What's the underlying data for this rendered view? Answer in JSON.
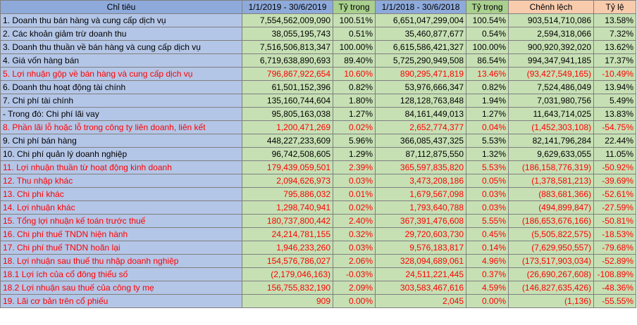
{
  "headers": {
    "label": "Chỉ tiêu",
    "period_2019": "1/1/2019 - 30/6/2019",
    "weight_2019": "Tỷ trọng",
    "period_2018": "1/1/2018 - 30/6/2018",
    "weight_2018": "Tỷ trọng",
    "difference": "Chênh lệch",
    "ratio": "Tỷ lệ"
  },
  "colors": {
    "header_blue": "#8eaadb",
    "header_green": "#a9d08e",
    "header_orange": "#f8cbad",
    "label_bg": "#b4c6e7",
    "cell_bg": "#c6e0b4",
    "highlight_text": "#ff0000"
  },
  "rows": [
    {
      "label": "1. Doanh thu bán hàng và cung cấp dịch vụ",
      "v2019": "7,554,562,009,090",
      "w2019": "100.51%",
      "v2018": "6,651,047,299,004",
      "w2018": "100.54%",
      "diff": "903,514,710,086",
      "ratio": "13.58%",
      "highlight": false
    },
    {
      "label": "2. Các khoản giảm trừ doanh thu",
      "v2019": "38,055,195,743",
      "w2019": "0.51%",
      "v2018": "35,460,877,677",
      "w2018": "0.54%",
      "diff": "2,594,318,066",
      "ratio": "7.32%",
      "highlight": false
    },
    {
      "label": "3. Doanh thu thuần về bán hàng và cung cấp dịch vụ",
      "v2019": "7,516,506,813,347",
      "w2019": "100.00%",
      "v2018": "6,615,586,421,327",
      "w2018": "100.00%",
      "diff": "900,920,392,020",
      "ratio": "13.62%",
      "highlight": false
    },
    {
      "label": "4. Giá vốn hàng bán",
      "v2019": "6,719,638,890,693",
      "w2019": "89.40%",
      "v2018": "5,725,290,949,508",
      "w2018": "86.54%",
      "diff": "994,347,941,185",
      "ratio": "17.37%",
      "highlight": false
    },
    {
      "label": "5. Lợi nhuận gộp về bán hàng và cung cấp dịch vụ",
      "v2019": "796,867,922,654",
      "w2019": "10.60%",
      "v2018": "890,295,471,819",
      "w2018": "13.46%",
      "diff": "(93,427,549,165)",
      "ratio": "-10.49%",
      "highlight": true
    },
    {
      "label": "6. Doanh thu hoạt động tài chính",
      "v2019": "61,501,152,396",
      "w2019": "0.82%",
      "v2018": "53,976,666,347",
      "w2018": "0.82%",
      "diff": "7,524,486,049",
      "ratio": "13.94%",
      "highlight": false
    },
    {
      "label": "7. Chi phí tài chính",
      "v2019": "135,160,744,604",
      "w2019": "1.80%",
      "v2018": "128,128,763,848",
      "w2018": "1.94%",
      "diff": "7,031,980,756",
      "ratio": "5.49%",
      "highlight": false
    },
    {
      "label": " - Trong đó: Chi phí lãi vay",
      "v2019": "95,805,163,038",
      "w2019": "1.27%",
      "v2018": "84,161,449,013",
      "w2018": "1.27%",
      "diff": "11,643,714,025",
      "ratio": "13.83%",
      "highlight": false
    },
    {
      "label": "8. Phần lãi lỗ hoặc lỗ trong công ty liên doanh, liên kết",
      "v2019": "1,200,471,269",
      "w2019": "0.02%",
      "v2018": "2,652,774,377",
      "w2018": "0.04%",
      "diff": "(1,452,303,108)",
      "ratio": "-54.75%",
      "highlight": true
    },
    {
      "label": "9. Chi phí bán hàng",
      "v2019": "448,227,233,609",
      "w2019": "5.96%",
      "v2018": "366,085,437,325",
      "w2018": "5.53%",
      "diff": "82,141,796,284",
      "ratio": "22.44%",
      "highlight": false
    },
    {
      "label": "10. Chi phí quản lý doanh nghiệp",
      "v2019": "96,742,508,605",
      "w2019": "1.29%",
      "v2018": "87,112,875,550",
      "w2018": "1.32%",
      "diff": "9,629,633,055",
      "ratio": "11.05%",
      "highlight": false
    },
    {
      "label": "11. Lợi nhuận thuần từ hoạt động kinh doanh",
      "v2019": "179,439,059,501",
      "w2019": "2.39%",
      "v2018": "365,597,835,820",
      "w2018": "5.53%",
      "diff": "(186,158,776,319)",
      "ratio": "-50.92%",
      "highlight": true
    },
    {
      "label": "12. Thu nhập khác",
      "v2019": "2,094,626,973",
      "w2019": "0.03%",
      "v2018": "3,473,208,186",
      "w2018": "0.05%",
      "diff": "(1,378,581,213)",
      "ratio": "-39.69%",
      "highlight": true
    },
    {
      "label": "13. Chi phí khác",
      "v2019": "795,886,032",
      "w2019": "0.01%",
      "v2018": "1,679,567,098",
      "w2018": "0.03%",
      "diff": "(883,681,366)",
      "ratio": "-52.61%",
      "highlight": true
    },
    {
      "label": "14. Lợi nhuận khác",
      "v2019": "1,298,740,941",
      "w2019": "0.02%",
      "v2018": "1,793,640,788",
      "w2018": "0.03%",
      "diff": "(494,899,847)",
      "ratio": "-27.59%",
      "highlight": true
    },
    {
      "label": "15. Tổng lợi nhuận kế toán trước thuế",
      "v2019": "180,737,800,442",
      "w2019": "2.40%",
      "v2018": "367,391,476,608",
      "w2018": "5.55%",
      "diff": "(186,653,676,166)",
      "ratio": "-50.81%",
      "highlight": true
    },
    {
      "label": "16. Chi phí thuế TNDN hiện hành",
      "v2019": "24,214,781,155",
      "w2019": "0.32%",
      "v2018": "29,720,603,730",
      "w2018": "0.45%",
      "diff": "(5,505,822,575)",
      "ratio": "-18.53%",
      "highlight": true
    },
    {
      "label": "17. Chi phí thuế TNDN hoãn lại",
      "v2019": "1,946,233,260",
      "w2019": "0.03%",
      "v2018": "9,576,183,817",
      "w2018": "0.14%",
      "diff": "(7,629,950,557)",
      "ratio": "-79.68%",
      "highlight": true
    },
    {
      "label": "18. Lợi nhuận sau thuế thu nhập doanh nghiệp",
      "v2019": "154,576,786,027",
      "w2019": "2.06%",
      "v2018": "328,094,689,061",
      "w2018": "4.96%",
      "diff": "(173,517,903,034)",
      "ratio": "-52.89%",
      "highlight": true
    },
    {
      "label": "18.1 Lợi ích của cổ đông thiểu số",
      "v2019": "(2,179,046,163)",
      "w2019": "-0.03%",
      "v2018": "24,511,221,445",
      "w2018": "0.37%",
      "diff": "(26,690,267,608)",
      "ratio": "-108.89%",
      "highlight": true
    },
    {
      "label": "18.2 Lợi nhuận sau thuế của công ty mẹ",
      "v2019": "156,755,832,190",
      "w2019": "2.09%",
      "v2018": "303,583,467,616",
      "w2018": "4.59%",
      "diff": "(146,827,635,426)",
      "ratio": "-48.36%",
      "highlight": true
    },
    {
      "label": "19. Lãi cơ bản trên cổ phiếu",
      "v2019": "909",
      "w2019": "0.00%",
      "v2018": "2,045",
      "w2018": "0.00%",
      "diff": "(1,136)",
      "ratio": "-55.55%",
      "highlight": true
    }
  ]
}
